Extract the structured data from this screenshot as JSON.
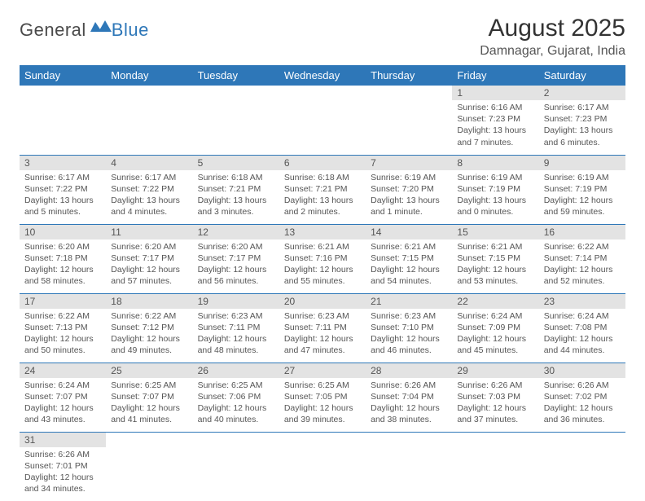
{
  "branding": {
    "logo_text_1": "General",
    "logo_text_2": "Blue",
    "logo_color_1": "#4a4a4a",
    "logo_color_2": "#2e77b8"
  },
  "title": {
    "month_year": "August 2025",
    "location": "Damnagar, Gujarat, India"
  },
  "calendar": {
    "type": "table",
    "header_bg": "#2e77b8",
    "header_fg": "#ffffff",
    "daynum_bg": "#e3e3e3",
    "cell_border_color": "#2e77b8",
    "text_color": "#555555",
    "background_color": "#ffffff",
    "body_fontsize": 10.5,
    "daynum_fontsize": 12,
    "header_fontsize": 13,
    "day_headers": [
      "Sunday",
      "Monday",
      "Tuesday",
      "Wednesday",
      "Thursday",
      "Friday",
      "Saturday"
    ],
    "weeks": [
      [
        null,
        null,
        null,
        null,
        null,
        {
          "n": "1",
          "sr": "Sunrise: 6:16 AM",
          "ss": "Sunset: 7:23 PM",
          "dl": "Daylight: 13 hours and 7 minutes."
        },
        {
          "n": "2",
          "sr": "Sunrise: 6:17 AM",
          "ss": "Sunset: 7:23 PM",
          "dl": "Daylight: 13 hours and 6 minutes."
        }
      ],
      [
        {
          "n": "3",
          "sr": "Sunrise: 6:17 AM",
          "ss": "Sunset: 7:22 PM",
          "dl": "Daylight: 13 hours and 5 minutes."
        },
        {
          "n": "4",
          "sr": "Sunrise: 6:17 AM",
          "ss": "Sunset: 7:22 PM",
          "dl": "Daylight: 13 hours and 4 minutes."
        },
        {
          "n": "5",
          "sr": "Sunrise: 6:18 AM",
          "ss": "Sunset: 7:21 PM",
          "dl": "Daylight: 13 hours and 3 minutes."
        },
        {
          "n": "6",
          "sr": "Sunrise: 6:18 AM",
          "ss": "Sunset: 7:21 PM",
          "dl": "Daylight: 13 hours and 2 minutes."
        },
        {
          "n": "7",
          "sr": "Sunrise: 6:19 AM",
          "ss": "Sunset: 7:20 PM",
          "dl": "Daylight: 13 hours and 1 minute."
        },
        {
          "n": "8",
          "sr": "Sunrise: 6:19 AM",
          "ss": "Sunset: 7:19 PM",
          "dl": "Daylight: 13 hours and 0 minutes."
        },
        {
          "n": "9",
          "sr": "Sunrise: 6:19 AM",
          "ss": "Sunset: 7:19 PM",
          "dl": "Daylight: 12 hours and 59 minutes."
        }
      ],
      [
        {
          "n": "10",
          "sr": "Sunrise: 6:20 AM",
          "ss": "Sunset: 7:18 PM",
          "dl": "Daylight: 12 hours and 58 minutes."
        },
        {
          "n": "11",
          "sr": "Sunrise: 6:20 AM",
          "ss": "Sunset: 7:17 PM",
          "dl": "Daylight: 12 hours and 57 minutes."
        },
        {
          "n": "12",
          "sr": "Sunrise: 6:20 AM",
          "ss": "Sunset: 7:17 PM",
          "dl": "Daylight: 12 hours and 56 minutes."
        },
        {
          "n": "13",
          "sr": "Sunrise: 6:21 AM",
          "ss": "Sunset: 7:16 PM",
          "dl": "Daylight: 12 hours and 55 minutes."
        },
        {
          "n": "14",
          "sr": "Sunrise: 6:21 AM",
          "ss": "Sunset: 7:15 PM",
          "dl": "Daylight: 12 hours and 54 minutes."
        },
        {
          "n": "15",
          "sr": "Sunrise: 6:21 AM",
          "ss": "Sunset: 7:15 PM",
          "dl": "Daylight: 12 hours and 53 minutes."
        },
        {
          "n": "16",
          "sr": "Sunrise: 6:22 AM",
          "ss": "Sunset: 7:14 PM",
          "dl": "Daylight: 12 hours and 52 minutes."
        }
      ],
      [
        {
          "n": "17",
          "sr": "Sunrise: 6:22 AM",
          "ss": "Sunset: 7:13 PM",
          "dl": "Daylight: 12 hours and 50 minutes."
        },
        {
          "n": "18",
          "sr": "Sunrise: 6:22 AM",
          "ss": "Sunset: 7:12 PM",
          "dl": "Daylight: 12 hours and 49 minutes."
        },
        {
          "n": "19",
          "sr": "Sunrise: 6:23 AM",
          "ss": "Sunset: 7:11 PM",
          "dl": "Daylight: 12 hours and 48 minutes."
        },
        {
          "n": "20",
          "sr": "Sunrise: 6:23 AM",
          "ss": "Sunset: 7:11 PM",
          "dl": "Daylight: 12 hours and 47 minutes."
        },
        {
          "n": "21",
          "sr": "Sunrise: 6:23 AM",
          "ss": "Sunset: 7:10 PM",
          "dl": "Daylight: 12 hours and 46 minutes."
        },
        {
          "n": "22",
          "sr": "Sunrise: 6:24 AM",
          "ss": "Sunset: 7:09 PM",
          "dl": "Daylight: 12 hours and 45 minutes."
        },
        {
          "n": "23",
          "sr": "Sunrise: 6:24 AM",
          "ss": "Sunset: 7:08 PM",
          "dl": "Daylight: 12 hours and 44 minutes."
        }
      ],
      [
        {
          "n": "24",
          "sr": "Sunrise: 6:24 AM",
          "ss": "Sunset: 7:07 PM",
          "dl": "Daylight: 12 hours and 43 minutes."
        },
        {
          "n": "25",
          "sr": "Sunrise: 6:25 AM",
          "ss": "Sunset: 7:07 PM",
          "dl": "Daylight: 12 hours and 41 minutes."
        },
        {
          "n": "26",
          "sr": "Sunrise: 6:25 AM",
          "ss": "Sunset: 7:06 PM",
          "dl": "Daylight: 12 hours and 40 minutes."
        },
        {
          "n": "27",
          "sr": "Sunrise: 6:25 AM",
          "ss": "Sunset: 7:05 PM",
          "dl": "Daylight: 12 hours and 39 minutes."
        },
        {
          "n": "28",
          "sr": "Sunrise: 6:26 AM",
          "ss": "Sunset: 7:04 PM",
          "dl": "Daylight: 12 hours and 38 minutes."
        },
        {
          "n": "29",
          "sr": "Sunrise: 6:26 AM",
          "ss": "Sunset: 7:03 PM",
          "dl": "Daylight: 12 hours and 37 minutes."
        },
        {
          "n": "30",
          "sr": "Sunrise: 6:26 AM",
          "ss": "Sunset: 7:02 PM",
          "dl": "Daylight: 12 hours and 36 minutes."
        }
      ],
      [
        {
          "n": "31",
          "sr": "Sunrise: 6:26 AM",
          "ss": "Sunset: 7:01 PM",
          "dl": "Daylight: 12 hours and 34 minutes."
        },
        null,
        null,
        null,
        null,
        null,
        null
      ]
    ]
  }
}
